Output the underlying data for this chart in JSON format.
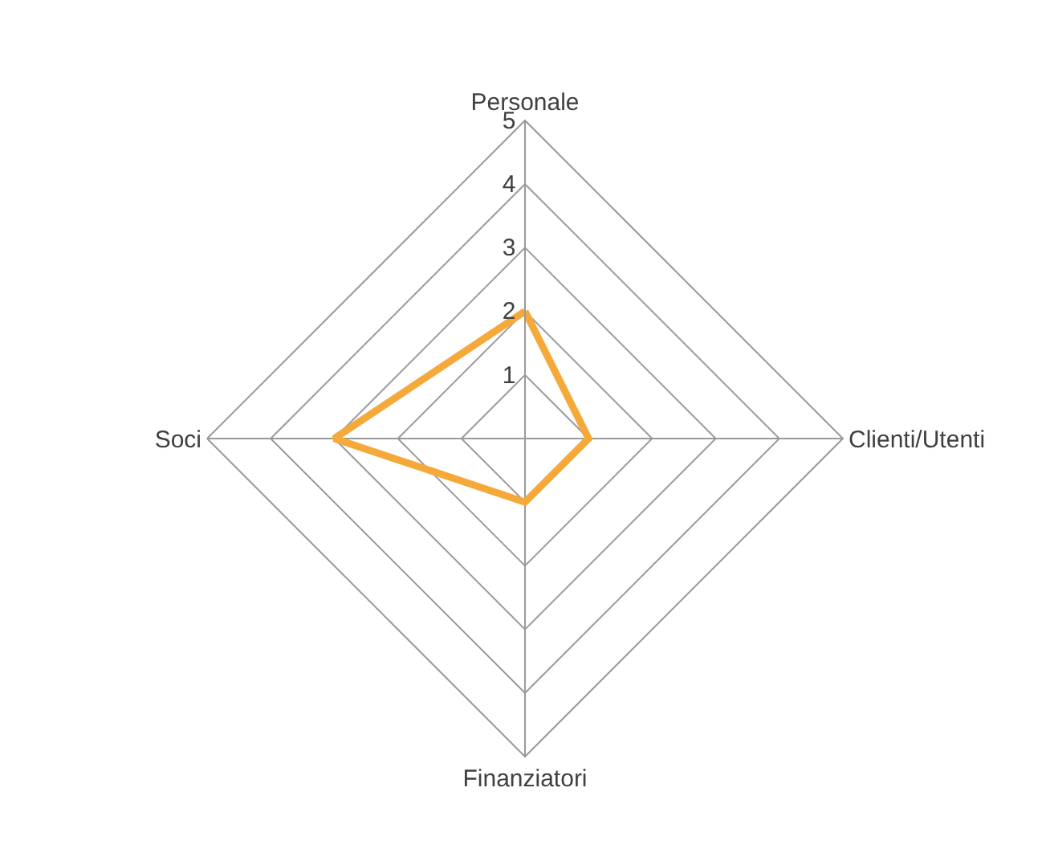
{
  "chart_data": {
    "type": "radar",
    "categories": [
      "Personale",
      "Clienti/Utenti",
      "Finanziatori",
      "Soci"
    ],
    "series": [
      {
        "color": "#f5a93b",
        "values": [
          2,
          1,
          1,
          3
        ]
      }
    ],
    "ylim": [
      0,
      5
    ],
    "yticks": [
      1,
      2,
      3,
      4,
      5
    ],
    "grid": true
  }
}
